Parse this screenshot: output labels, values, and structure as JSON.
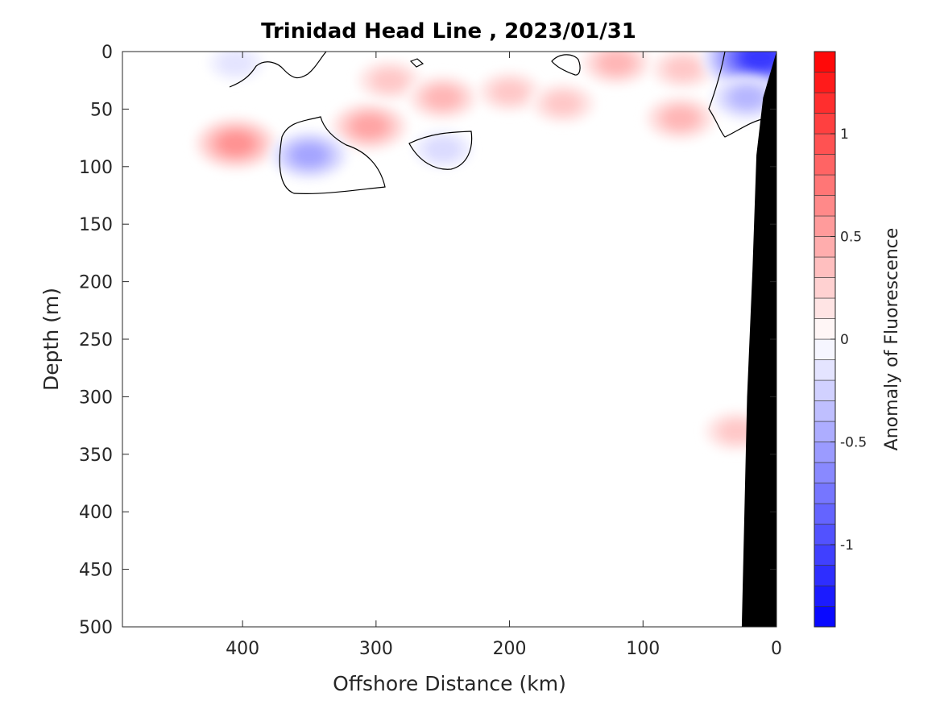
{
  "chart_data": {
    "type": "heatmap",
    "title": "Trinidad Head Line , 2023/01/31",
    "xlabel": "Offshore Distance (km)",
    "ylabel": "Depth (m)",
    "xlim": [
      490,
      0
    ],
    "ylim": [
      0,
      500
    ],
    "x_reversed": true,
    "y_reversed": true,
    "x_ticks": [
      400,
      300,
      200,
      100,
      0
    ],
    "y_ticks": [
      0,
      50,
      100,
      150,
      200,
      250,
      300,
      350,
      400,
      450,
      500
    ],
    "colorbar": {
      "label": "Anomaly of Fluorescence",
      "range": [
        -1.4,
        1.4
      ],
      "step": 0.1,
      "ticks": [
        -1,
        -0.5,
        0,
        0.5,
        1
      ],
      "tick_labels": [
        "-1",
        "-0.5",
        "0",
        "0.5",
        "1"
      ],
      "low_color": "#0000ff",
      "mid_color": "#ffffff",
      "high_color": "#ff0000"
    },
    "zero_contour_color": "#000000",
    "bathymetry_color": "#000000",
    "bathymetry": [
      [
        0,
        0
      ],
      [
        10,
        40
      ],
      [
        15,
        90
      ],
      [
        18,
        190
      ],
      [
        22,
        300
      ],
      [
        24,
        400
      ],
      [
        26,
        500
      ],
      [
        0,
        500
      ]
    ],
    "anomaly_features": [
      {
        "x": 405,
        "depth": 80,
        "value": 0.6
      },
      {
        "x": 305,
        "depth": 65,
        "value": 0.5
      },
      {
        "x": 290,
        "depth": 25,
        "value": 0.3
      },
      {
        "x": 250,
        "depth": 40,
        "value": 0.4
      },
      {
        "x": 200,
        "depth": 35,
        "value": 0.3
      },
      {
        "x": 160,
        "depth": 45,
        "value": 0.3
      },
      {
        "x": 120,
        "depth": 10,
        "value": 0.4
      },
      {
        "x": 70,
        "depth": 15,
        "value": 0.3
      },
      {
        "x": 72,
        "depth": 58,
        "value": 0.4
      },
      {
        "x": 30,
        "depth": 330,
        "value": 0.3
      },
      {
        "x": 350,
        "depth": 90,
        "value": -0.5
      },
      {
        "x": 250,
        "depth": 85,
        "value": -0.2
      },
      {
        "x": 12,
        "depth": 5,
        "value": -1.1
      },
      {
        "x": 22,
        "depth": 40,
        "value": -0.4
      },
      {
        "x": 405,
        "depth": 10,
        "value": -0.15
      }
    ]
  }
}
